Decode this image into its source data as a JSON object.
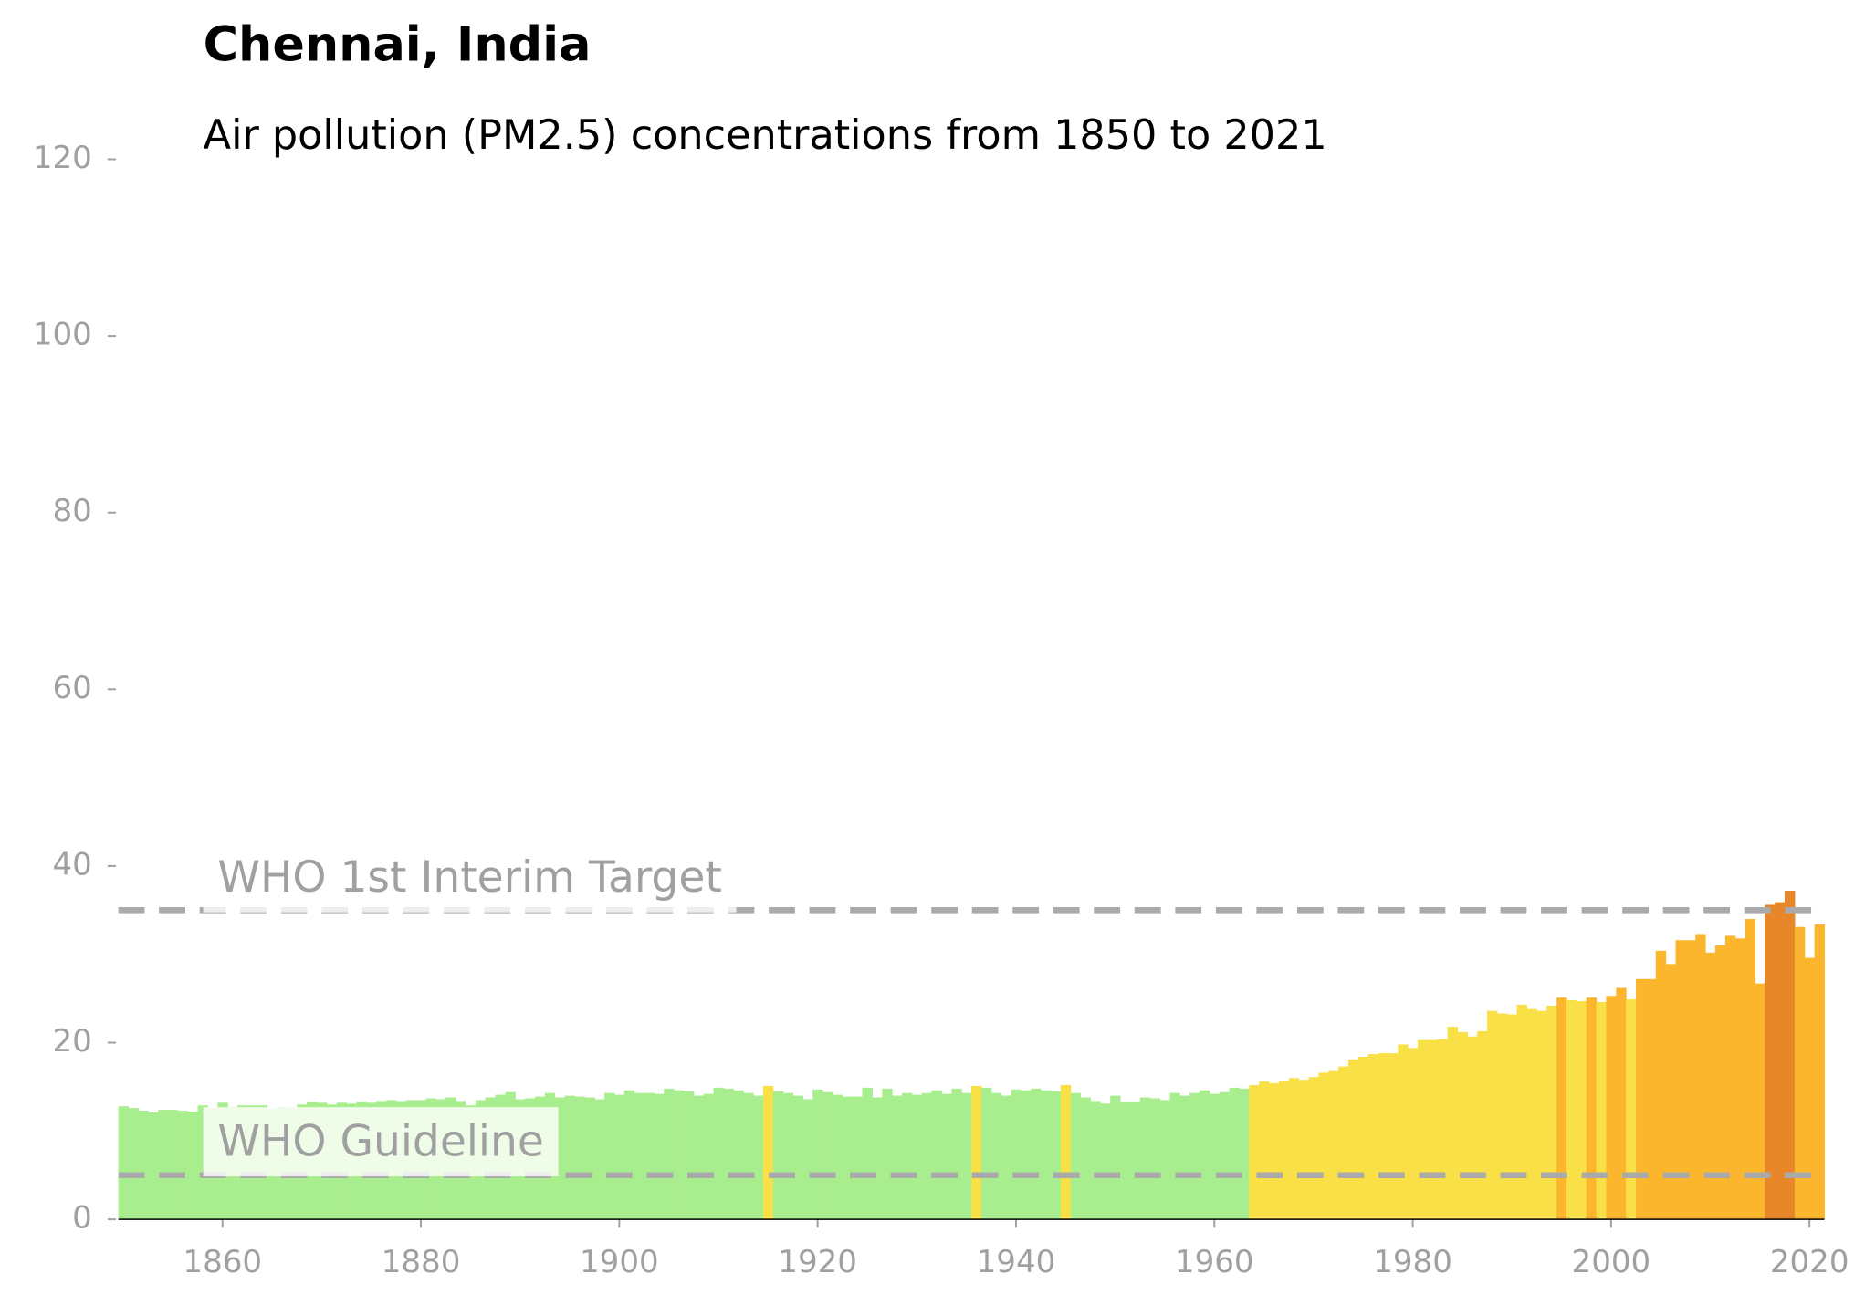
{
  "chart_data": {
    "type": "bar",
    "title": "Chennai, India",
    "subtitle": "Air pollution (PM2.5) concentrations from 1850 to 2021",
    "x_start": 1850,
    "values": [
      12.8,
      12.6,
      12.3,
      12.1,
      12.4,
      12.4,
      12.3,
      12.2,
      12.9,
      12.6,
      13.2,
      12.7,
      12.9,
      12.9,
      12.9,
      12.5,
      12.7,
      12.6,
      13.0,
      13.3,
      13.2,
      13.0,
      13.2,
      13.1,
      13.3,
      13.2,
      13.4,
      13.5,
      13.4,
      13.5,
      13.5,
      13.7,
      13.6,
      13.8,
      13.4,
      12.9,
      13.5,
      13.8,
      14.1,
      14.4,
      13.6,
      13.7,
      13.9,
      14.3,
      13.8,
      14.0,
      13.9,
      13.8,
      13.6,
      14.3,
      14.1,
      14.6,
      14.3,
      14.3,
      14.2,
      14.8,
      14.6,
      14.5,
      14.0,
      14.2,
      14.9,
      14.8,
      14.6,
      14.3,
      14.0,
      15.1,
      14.5,
      14.3,
      14.0,
      13.6,
      14.7,
      14.4,
      14.1,
      13.9,
      13.9,
      14.9,
      13.8,
      14.8,
      14.0,
      14.3,
      14.1,
      14.3,
      14.6,
      14.2,
      14.8,
      14.3,
      15.1,
      14.9,
      14.3,
      14.0,
      14.7,
      14.6,
      14.8,
      14.6,
      14.5,
      15.2,
      14.3,
      13.8,
      13.4,
      13.1,
      14.0,
      13.3,
      13.3,
      13.8,
      13.7,
      13.5,
      14.3,
      14.0,
      14.3,
      14.6,
      14.2,
      14.4,
      14.9,
      14.8,
      15.2,
      15.6,
      15.4,
      15.7,
      16.0,
      15.8,
      16.1,
      16.6,
      16.8,
      17.3,
      18.1,
      18.4,
      18.7,
      18.8,
      18.8,
      19.8,
      19.4,
      20.3,
      20.3,
      20.4,
      21.8,
      21.2,
      20.7,
      21.3,
      23.6,
      23.3,
      23.2,
      24.3,
      23.8,
      23.6,
      24.2,
      25.1,
      24.8,
      24.7,
      25.1,
      24.6,
      25.3,
      26.2,
      24.9,
      27.2,
      27.2,
      30.4,
      28.9,
      31.6,
      31.6,
      32.3,
      30.2,
      31.0,
      32.1,
      31.8,
      34.0,
      26.7,
      35.6,
      35.9,
      37.2,
      33.1,
      29.6,
      33.4
    ],
    "colors": [
      "#a8ed8e",
      "#a8ed8e",
      "#a8ed8e",
      "#a8ed8e",
      "#a8ed8e",
      "#a8ed8e",
      "#a8ed8e",
      "#a8ed8e",
      "#a8ed8e",
      "#a8ed8e",
      "#a8ed8e",
      "#a8ed8e",
      "#a8ed8e",
      "#a8ed8e",
      "#a8ed8e",
      "#a8ed8e",
      "#a8ed8e",
      "#a8ed8e",
      "#a8ed8e",
      "#a8ed8e",
      "#a8ed8e",
      "#a8ed8e",
      "#a8ed8e",
      "#a8ed8e",
      "#a8ed8e",
      "#a8ed8e",
      "#a8ed8e",
      "#a8ed8e",
      "#a8ed8e",
      "#a8ed8e",
      "#a8ed8e",
      "#a8ed8e",
      "#a8ed8e",
      "#a8ed8e",
      "#a8ed8e",
      "#a8ed8e",
      "#a8ed8e",
      "#a8ed8e",
      "#a8ed8e",
      "#a8ed8e",
      "#a8ed8e",
      "#a8ed8e",
      "#a8ed8e",
      "#a8ed8e",
      "#a8ed8e",
      "#a8ed8e",
      "#a8ed8e",
      "#a8ed8e",
      "#a8ed8e",
      "#a8ed8e",
      "#a8ed8e",
      "#a8ed8e",
      "#a8ed8e",
      "#a8ed8e",
      "#a8ed8e",
      "#a8ed8e",
      "#a8ed8e",
      "#a8ed8e",
      "#a8ed8e",
      "#a8ed8e",
      "#a8ed8e",
      "#a8ed8e",
      "#a8ed8e",
      "#a8ed8e",
      "#a8ed8e",
      "#f9e046",
      "#a8ed8e",
      "#a8ed8e",
      "#a8ed8e",
      "#a8ed8e",
      "#a8ed8e",
      "#a8ed8e",
      "#a8ed8e",
      "#a8ed8e",
      "#a8ed8e",
      "#a8ed8e",
      "#a8ed8e",
      "#a8ed8e",
      "#a8ed8e",
      "#a8ed8e",
      "#a8ed8e",
      "#a8ed8e",
      "#a8ed8e",
      "#a8ed8e",
      "#a8ed8e",
      "#a8ed8e",
      "#f9e046",
      "#a8ed8e",
      "#a8ed8e",
      "#a8ed8e",
      "#a8ed8e",
      "#a8ed8e",
      "#a8ed8e",
      "#a8ed8e",
      "#a8ed8e",
      "#f9e046",
      "#a8ed8e",
      "#a8ed8e",
      "#a8ed8e",
      "#a8ed8e",
      "#a8ed8e",
      "#a8ed8e",
      "#a8ed8e",
      "#a8ed8e",
      "#a8ed8e",
      "#a8ed8e",
      "#a8ed8e",
      "#a8ed8e",
      "#a8ed8e",
      "#a8ed8e",
      "#a8ed8e",
      "#a8ed8e",
      "#a8ed8e",
      "#a8ed8e",
      "#f9e046",
      "#f9e046",
      "#f9e046",
      "#f9e046",
      "#f9e046",
      "#f9e046",
      "#f9e046",
      "#f9e046",
      "#f9e046",
      "#f9e046",
      "#f9e046",
      "#f9e046",
      "#f9e046",
      "#f9e046",
      "#f9e046",
      "#f9e046",
      "#f9e046",
      "#f9e046",
      "#f9e046",
      "#f9e046",
      "#f9e046",
      "#f9e046",
      "#f9e046",
      "#f9e046",
      "#f9e046",
      "#f9e046",
      "#f9e046",
      "#f9e046",
      "#f9e046",
      "#f9e046",
      "#f9e046",
      "#fcb62d",
      "#f9e046",
      "#f9e046",
      "#fcb62d",
      "#f9e046",
      "#fcb62d",
      "#fcb62d",
      "#f9e046",
      "#fcb62d",
      "#fcb62d",
      "#fcb62d",
      "#fcb62d",
      "#fcb62d",
      "#fcb62d",
      "#fcb62d",
      "#fcb62d",
      "#fcb62d",
      "#fcb62d",
      "#fcb62d",
      "#fcb62d",
      "#fcb62d",
      "#e8872a",
      "#e8872a",
      "#e8872a",
      "#fcb62d",
      "#fcb62d",
      "#fcb62d"
    ],
    "xlim": [
      1849.5,
      2021.5
    ],
    "xticks": [
      1860,
      1880,
      1900,
      1920,
      1940,
      1960,
      1980,
      2000,
      2020
    ],
    "ylim": [
      0,
      120
    ],
    "yticks": [
      0,
      20,
      40,
      60,
      80,
      100,
      120
    ],
    "reference_lines": [
      {
        "value": 35,
        "label": "WHO 1st Interim Target"
      },
      {
        "value": 5,
        "label": "WHO Guideline"
      }
    ]
  }
}
